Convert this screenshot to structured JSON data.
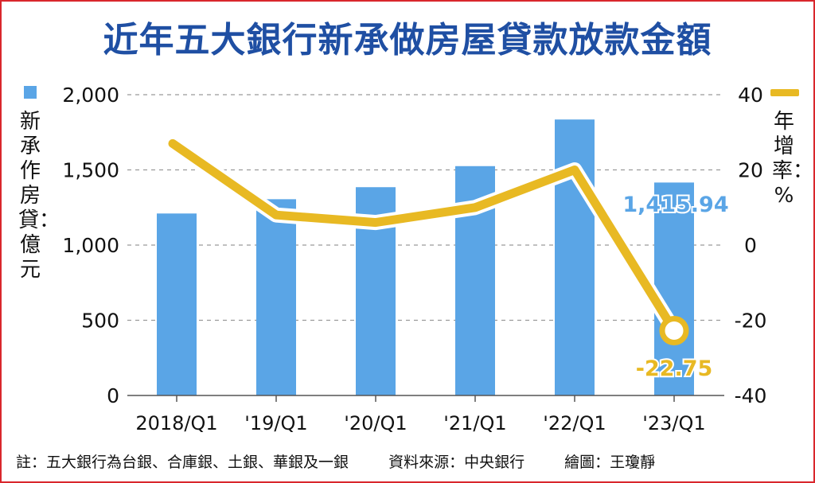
{
  "title": "近年五大銀行新承做房屋貸款放款金額",
  "legend": {
    "bar_label": "新承作房貸：億元",
    "line_label": "年增率：%"
  },
  "footer": {
    "note": "註：五大銀行為台銀、合庫銀、土銀、華銀及一銀",
    "source": "資料來源：中央銀行",
    "credit": "繪圖：王瓊靜"
  },
  "colors": {
    "bar": "#5aa5e6",
    "line": "#e8b923",
    "title": "#1f4fa3",
    "border": "#d9262c",
    "bar_annotation": "#5aa5e6",
    "line_annotation": "#e8b923"
  },
  "chart_data": {
    "type": "bar",
    "categories": [
      "2018/Q1",
      "'19/Q1",
      "'20/Q1",
      "'21/Q1",
      "'22/Q1",
      "'23/Q1"
    ],
    "series": [
      {
        "type": "bar",
        "axis": "left",
        "values": [
          1210,
          1305,
          1385,
          1525,
          1835,
          1415.94
        ]
      },
      {
        "type": "line",
        "axis": "right",
        "values": [
          27,
          8,
          6,
          10,
          20,
          -22.75
        ]
      }
    ],
    "left_axis": {
      "ylim": [
        0,
        2000
      ],
      "ticks": [
        0,
        500,
        1000,
        1500,
        2000
      ],
      "tick_labels": [
        "0",
        "500",
        "1,000",
        "1,500",
        "2,000"
      ]
    },
    "right_axis": {
      "ylim": [
        -40,
        40
      ],
      "ticks": [
        -40,
        -20,
        0,
        20,
        40
      ],
      "tick_labels": [
        "-40",
        "-20",
        "0",
        "20",
        "40"
      ]
    },
    "annotations": {
      "bar_last": "1,415.94",
      "line_last": "-22.75"
    },
    "grid": "dashed horizontal"
  }
}
